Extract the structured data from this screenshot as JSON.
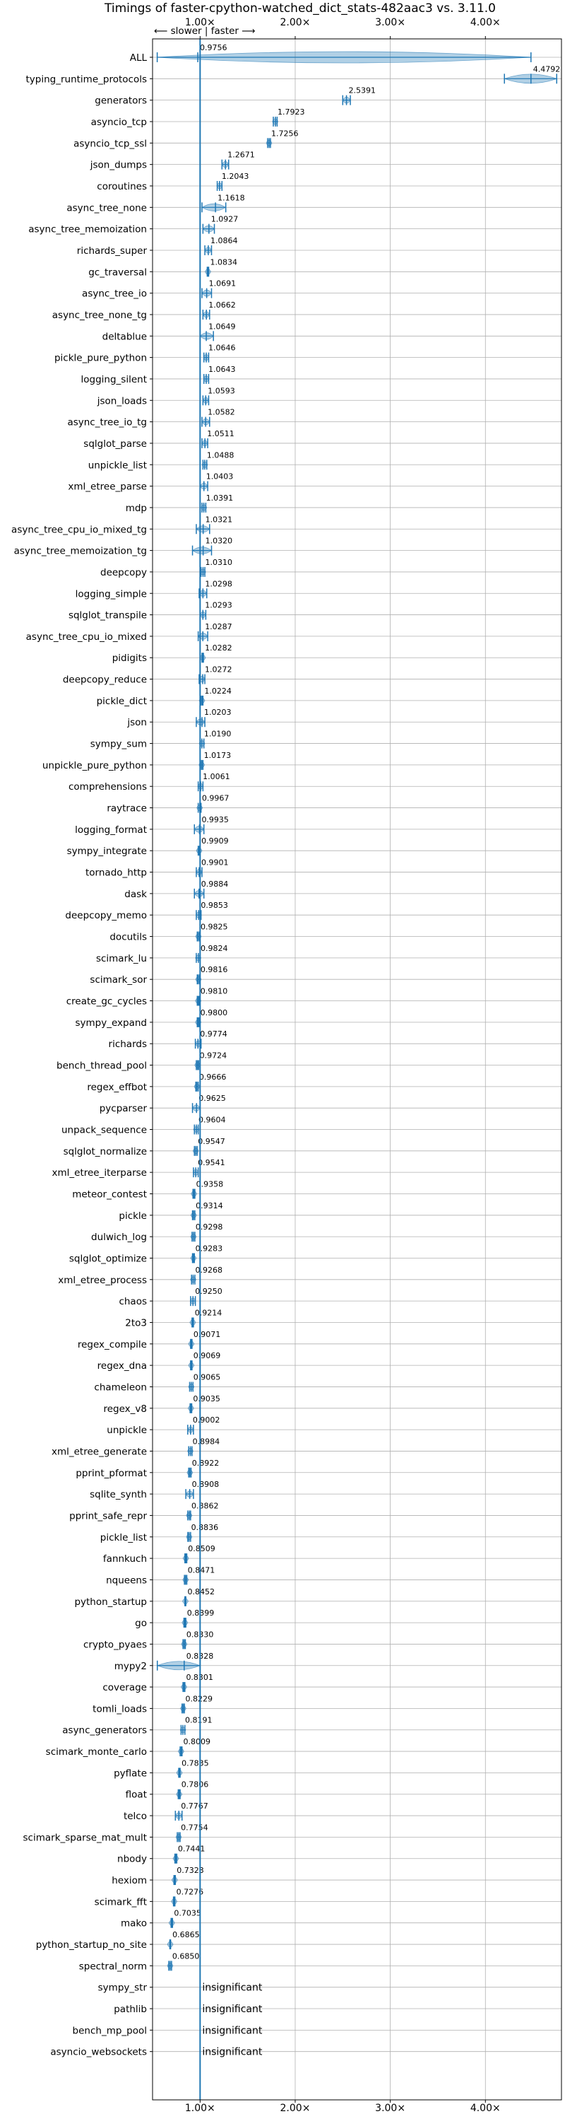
{
  "chart_data": {
    "type": "violin",
    "title": "Timings of faster-cpython-watched_dict_stats-482aac3 vs. 3.11.0",
    "direction_label": "⟵ slower | faster ⟶",
    "xlim": [
      0.5,
      4.8
    ],
    "xticks": [
      1,
      2,
      3,
      4
    ],
    "xtick_labels": [
      "1.00×",
      "2.00×",
      "3.00×",
      "4.00×"
    ],
    "reference_line": 1.0,
    "grid": true,
    "insignificant_label": "insignificant",
    "accent_color": "#1f77b4",
    "benchmarks": [
      {
        "name": "ALL",
        "value": 0.9756,
        "label": "0.9756",
        "lo": 0.5491,
        "hi": 4.4792
      },
      {
        "name": "typing_runtime_protocols",
        "value": 4.4792,
        "label": "4.4792",
        "lo": 4.2,
        "hi": 4.75
      },
      {
        "name": "generators",
        "value": 2.5391,
        "label": "2.5391",
        "lo": 2.5,
        "hi": 2.58
      },
      {
        "name": "asyncio_tcp",
        "value": 1.7923,
        "label": "1.7923",
        "lo": 1.77,
        "hi": 1.81
      },
      {
        "name": "asyncio_tcp_ssl",
        "value": 1.7256,
        "label": "1.7256",
        "lo": 1.71,
        "hi": 1.74
      },
      {
        "name": "json_dumps",
        "value": 1.2671,
        "label": "1.2671",
        "lo": 1.23,
        "hi": 1.3
      },
      {
        "name": "coroutines",
        "value": 1.2043,
        "label": "1.2043",
        "lo": 1.18,
        "hi": 1.23
      },
      {
        "name": "async_tree_none",
        "value": 1.1618,
        "label": "1.1618",
        "lo": 1.02,
        "hi": 1.27
      },
      {
        "name": "async_tree_memoization",
        "value": 1.0927,
        "label": "1.0927",
        "lo": 1.03,
        "hi": 1.15
      },
      {
        "name": "richards_super",
        "value": 1.0864,
        "label": "1.0864",
        "lo": 1.05,
        "hi": 1.12
      },
      {
        "name": "gc_traversal",
        "value": 1.0834,
        "label": "1.0834",
        "lo": 1.075,
        "hi": 1.09
      },
      {
        "name": "async_tree_io",
        "value": 1.0691,
        "label": "1.0691",
        "lo": 1.02,
        "hi": 1.12
      },
      {
        "name": "async_tree_none_tg",
        "value": 1.0662,
        "label": "1.0662",
        "lo": 1.03,
        "hi": 1.1
      },
      {
        "name": "deltablue",
        "value": 1.0649,
        "label": "1.0649",
        "lo": 1.0,
        "hi": 1.14
      },
      {
        "name": "pickle_pure_python",
        "value": 1.0646,
        "label": "1.0646",
        "lo": 1.04,
        "hi": 1.09
      },
      {
        "name": "logging_silent",
        "value": 1.0643,
        "label": "1.0643",
        "lo": 1.04,
        "hi": 1.09
      },
      {
        "name": "json_loads",
        "value": 1.0593,
        "label": "1.0593",
        "lo": 1.03,
        "hi": 1.09
      },
      {
        "name": "async_tree_io_tg",
        "value": 1.0582,
        "label": "1.0582",
        "lo": 1.02,
        "hi": 1.1
      },
      {
        "name": "sqlglot_parse",
        "value": 1.0511,
        "label": "1.0511",
        "lo": 1.02,
        "hi": 1.08
      },
      {
        "name": "unpickle_list",
        "value": 1.0488,
        "label": "1.0488",
        "lo": 1.03,
        "hi": 1.07
      },
      {
        "name": "xml_etree_parse",
        "value": 1.0403,
        "label": "1.0403",
        "lo": 1.0,
        "hi": 1.08
      },
      {
        "name": "mdp",
        "value": 1.0391,
        "label": "1.0391",
        "lo": 1.02,
        "hi": 1.06
      },
      {
        "name": "async_tree_cpu_io_mixed_tg",
        "value": 1.0321,
        "label": "1.0321",
        "lo": 0.96,
        "hi": 1.1
      },
      {
        "name": "async_tree_memoization_tg",
        "value": 1.032,
        "label": "1.0320",
        "lo": 0.92,
        "hi": 1.12
      },
      {
        "name": "deepcopy",
        "value": 1.031,
        "label": "1.0310",
        "lo": 1.01,
        "hi": 1.05
      },
      {
        "name": "logging_simple",
        "value": 1.0298,
        "label": "1.0298",
        "lo": 0.99,
        "hi": 1.07
      },
      {
        "name": "sqlglot_transpile",
        "value": 1.0293,
        "label": "1.0293",
        "lo": 1.0,
        "hi": 1.06
      },
      {
        "name": "async_tree_cpu_io_mixed",
        "value": 1.0287,
        "label": "1.0287",
        "lo": 0.98,
        "hi": 1.08
      },
      {
        "name": "pidigits",
        "value": 1.0282,
        "label": "1.0282",
        "lo": 1.02,
        "hi": 1.035
      },
      {
        "name": "deepcopy_reduce",
        "value": 1.0272,
        "label": "1.0272",
        "lo": 0.99,
        "hi": 1.05
      },
      {
        "name": "pickle_dict",
        "value": 1.0224,
        "label": "1.0224",
        "lo": 1.01,
        "hi": 1.03
      },
      {
        "name": "json",
        "value": 1.0203,
        "label": "1.0203",
        "lo": 0.96,
        "hi": 1.05
      },
      {
        "name": "sympy_sum",
        "value": 1.019,
        "label": "1.0190",
        "lo": 1.0,
        "hi": 1.04
      },
      {
        "name": "unpickle_pure_python",
        "value": 1.0173,
        "label": "1.0173",
        "lo": 1.005,
        "hi": 1.03
      },
      {
        "name": "comprehensions",
        "value": 1.0061,
        "label": "1.0061",
        "lo": 0.98,
        "hi": 1.03
      },
      {
        "name": "raytrace",
        "value": 0.9967,
        "label": "0.9967",
        "lo": 0.98,
        "hi": 1.01
      },
      {
        "name": "logging_format",
        "value": 0.9935,
        "label": "0.9935",
        "lo": 0.94,
        "hi": 1.04
      },
      {
        "name": "sympy_integrate",
        "value": 0.9909,
        "label": "0.9909",
        "lo": 0.98,
        "hi": 1.0
      },
      {
        "name": "tornado_http",
        "value": 0.9901,
        "label": "0.9901",
        "lo": 0.96,
        "hi": 1.02
      },
      {
        "name": "dask",
        "value": 0.9884,
        "label": "0.9884",
        "lo": 0.94,
        "hi": 1.04
      },
      {
        "name": "deepcopy_memo",
        "value": 0.9853,
        "label": "0.9853",
        "lo": 0.96,
        "hi": 1.01
      },
      {
        "name": "docutils",
        "value": 0.9825,
        "label": "0.9825",
        "lo": 0.97,
        "hi": 0.995
      },
      {
        "name": "scimark_lu",
        "value": 0.9824,
        "label": "0.9824",
        "lo": 0.96,
        "hi": 1.0
      },
      {
        "name": "scimark_sor",
        "value": 0.9816,
        "label": "0.9816",
        "lo": 0.97,
        "hi": 0.995
      },
      {
        "name": "create_gc_cycles",
        "value": 0.981,
        "label": "0.9810",
        "lo": 0.97,
        "hi": 0.99
      },
      {
        "name": "sympy_expand",
        "value": 0.98,
        "label": "0.9800",
        "lo": 0.97,
        "hi": 0.99
      },
      {
        "name": "richards",
        "value": 0.9774,
        "label": "0.9774",
        "lo": 0.95,
        "hi": 1.01
      },
      {
        "name": "bench_thread_pool",
        "value": 0.9724,
        "label": "0.9724",
        "lo": 0.96,
        "hi": 0.985
      },
      {
        "name": "regex_effbot",
        "value": 0.9666,
        "label": "0.9666",
        "lo": 0.955,
        "hi": 0.98
      },
      {
        "name": "pycparser",
        "value": 0.9625,
        "label": "0.9625",
        "lo": 0.92,
        "hi": 1.0
      },
      {
        "name": "unpack_sequence",
        "value": 0.9604,
        "label": "0.9604",
        "lo": 0.94,
        "hi": 0.98
      },
      {
        "name": "sqlglot_normalize",
        "value": 0.9547,
        "label": "0.9547",
        "lo": 0.94,
        "hi": 0.97
      },
      {
        "name": "xml_etree_iterparse",
        "value": 0.9541,
        "label": "0.9541",
        "lo": 0.93,
        "hi": 0.98
      },
      {
        "name": "meteor_contest",
        "value": 0.9358,
        "label": "0.9358",
        "lo": 0.925,
        "hi": 0.945
      },
      {
        "name": "pickle",
        "value": 0.9314,
        "label": "0.9314",
        "lo": 0.92,
        "hi": 0.945
      },
      {
        "name": "dulwich_log",
        "value": 0.9298,
        "label": "0.9298",
        "lo": 0.915,
        "hi": 0.945
      },
      {
        "name": "sqlglot_optimize",
        "value": 0.9283,
        "label": "0.9283",
        "lo": 0.92,
        "hi": 0.94
      },
      {
        "name": "xml_etree_process",
        "value": 0.9268,
        "label": "0.9268",
        "lo": 0.91,
        "hi": 0.945
      },
      {
        "name": "chaos",
        "value": 0.925,
        "label": "0.9250",
        "lo": 0.9,
        "hi": 0.95
      },
      {
        "name": "2to3",
        "value": 0.9214,
        "label": "0.9214",
        "lo": 0.915,
        "hi": 0.93
      },
      {
        "name": "regex_compile",
        "value": 0.9071,
        "label": "0.9071",
        "lo": 0.9,
        "hi": 0.915
      },
      {
        "name": "regex_dna",
        "value": 0.9069,
        "label": "0.9069",
        "lo": 0.9,
        "hi": 0.915
      },
      {
        "name": "chameleon",
        "value": 0.9065,
        "label": "0.9065",
        "lo": 0.89,
        "hi": 0.925
      },
      {
        "name": "regex_v8",
        "value": 0.9035,
        "label": "0.9035",
        "lo": 0.895,
        "hi": 0.912
      },
      {
        "name": "unpickle",
        "value": 0.9002,
        "label": "0.9002",
        "lo": 0.87,
        "hi": 0.93
      },
      {
        "name": "xml_etree_generate",
        "value": 0.8984,
        "label": "0.8984",
        "lo": 0.88,
        "hi": 0.915
      },
      {
        "name": "pprint_pformat",
        "value": 0.8922,
        "label": "0.8922",
        "lo": 0.88,
        "hi": 0.905
      },
      {
        "name": "sqlite_synth",
        "value": 0.8908,
        "label": "0.8908",
        "lo": 0.85,
        "hi": 0.93
      },
      {
        "name": "pprint_safe_repr",
        "value": 0.8862,
        "label": "0.8862",
        "lo": 0.87,
        "hi": 0.9
      },
      {
        "name": "pickle_list",
        "value": 0.8836,
        "label": "0.8836",
        "lo": 0.87,
        "hi": 0.9
      },
      {
        "name": "fannkuch",
        "value": 0.8509,
        "label": "0.8509",
        "lo": 0.84,
        "hi": 0.86
      },
      {
        "name": "nqueens",
        "value": 0.8471,
        "label": "0.8471",
        "lo": 0.835,
        "hi": 0.86
      },
      {
        "name": "python_startup",
        "value": 0.8452,
        "label": "0.8452",
        "lo": 0.84,
        "hi": 0.85
      },
      {
        "name": "go",
        "value": 0.8399,
        "label": "0.8399",
        "lo": 0.83,
        "hi": 0.85
      },
      {
        "name": "crypto_pyaes",
        "value": 0.833,
        "label": "0.8330",
        "lo": 0.82,
        "hi": 0.845
      },
      {
        "name": "mypy2",
        "value": 0.8328,
        "label": "0.8328",
        "lo": 0.55,
        "hi": 1.0
      },
      {
        "name": "coverage",
        "value": 0.8301,
        "label": "0.8301",
        "lo": 0.82,
        "hi": 0.84
      },
      {
        "name": "tomli_loads",
        "value": 0.8229,
        "label": "0.8229",
        "lo": 0.81,
        "hi": 0.835
      },
      {
        "name": "async_generators",
        "value": 0.8191,
        "label": "0.8191",
        "lo": 0.8,
        "hi": 0.84
      },
      {
        "name": "scimark_monte_carlo",
        "value": 0.8009,
        "label": "0.8009",
        "lo": 0.79,
        "hi": 0.81
      },
      {
        "name": "pyflate",
        "value": 0.7835,
        "label": "0.7835",
        "lo": 0.775,
        "hi": 0.79
      },
      {
        "name": "float",
        "value": 0.7806,
        "label": "0.7806",
        "lo": 0.77,
        "hi": 0.79
      },
      {
        "name": "telco",
        "value": 0.7767,
        "label": "0.7767",
        "lo": 0.74,
        "hi": 0.81
      },
      {
        "name": "scimark_sparse_mat_mult",
        "value": 0.7754,
        "label": "0.7754",
        "lo": 0.76,
        "hi": 0.79
      },
      {
        "name": "nbody",
        "value": 0.7441,
        "label": "0.7441",
        "lo": 0.735,
        "hi": 0.755
      },
      {
        "name": "hexiom",
        "value": 0.7323,
        "label": "0.7323",
        "lo": 0.725,
        "hi": 0.74
      },
      {
        "name": "scimark_fft",
        "value": 0.7276,
        "label": "0.7276",
        "lo": 0.72,
        "hi": 0.735
      },
      {
        "name": "mako",
        "value": 0.7035,
        "label": "0.7035",
        "lo": 0.695,
        "hi": 0.71
      },
      {
        "name": "python_startup_no_site",
        "value": 0.6865,
        "label": "0.6865",
        "lo": 0.682,
        "hi": 0.69
      },
      {
        "name": "spectral_norm",
        "value": 0.685,
        "label": "0.6850",
        "lo": 0.67,
        "hi": 0.7
      },
      {
        "name": "sympy_str",
        "value": null,
        "label": ""
      },
      {
        "name": "pathlib",
        "value": null,
        "label": ""
      },
      {
        "name": "bench_mp_pool",
        "value": null,
        "label": ""
      },
      {
        "name": "asyncio_websockets",
        "value": null,
        "label": ""
      }
    ]
  }
}
